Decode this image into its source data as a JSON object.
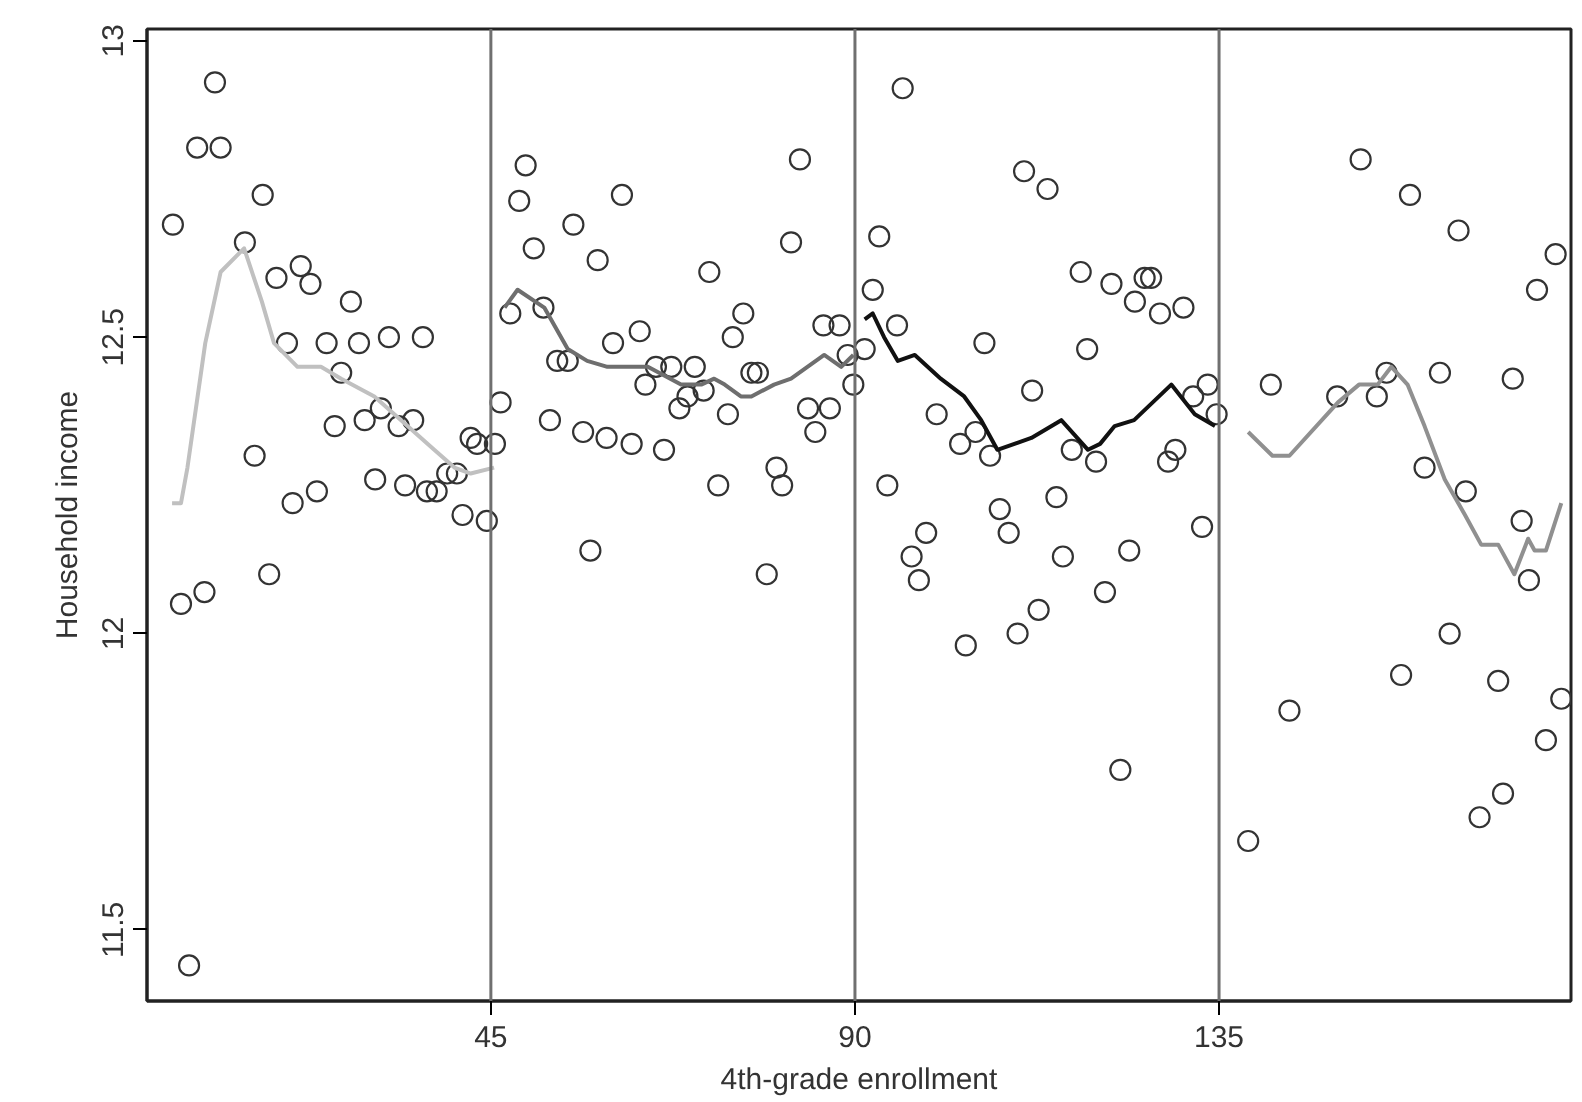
{
  "chart_data": {
    "type": "scatter",
    "xlabel": "4th-grade enrollment",
    "ylabel": "Household income",
    "xlim": [
      2.5,
      178.5
    ],
    "ylim": [
      11.38,
      13.02
    ],
    "xticks": [
      45,
      90,
      135
    ],
    "yticks": [
      11.5,
      12,
      12.5,
      13
    ],
    "grid": false,
    "ref_lines": [
      {
        "axis": "x",
        "value": 45,
        "color": "#707070"
      },
      {
        "axis": "x",
        "value": 90,
        "color": "#707070"
      },
      {
        "axis": "x",
        "value": 135,
        "color": "#707070"
      }
    ],
    "series": [
      {
        "marker": "circle",
        "color": "#333333",
        "x": [
          5.7,
          6.7,
          7.7,
          8.7,
          9.6,
          10.9,
          11.6,
          14.6,
          15.8,
          16.8,
          17.6,
          18.5,
          19.8,
          20.5,
          21.5,
          22.7,
          23.5,
          24.7,
          25.7,
          26.5,
          27.7,
          28.7,
          29.4,
          30.7,
          31.4,
          32.4,
          33.6,
          34.4,
          35.4,
          36.6,
          37.1,
          38.3,
          39.6,
          40.8,
          41.5,
          42.5,
          43.3,
          44.5,
          45.5,
          46.2,
          47.4,
          48.5,
          49.3,
          50.3,
          51.5,
          52.3,
          53.2,
          54.5,
          55.2,
          56.4,
          57.3,
          58.2,
          59.3,
          60.1,
          61.2,
          62.4,
          63.4,
          64.1,
          65.4,
          66.4,
          67.3,
          68.3,
          69.3,
          70.2,
          71.3,
          72.0,
          73.1,
          74.3,
          74.9,
          76.2,
          77.2,
          78.0,
          79.1,
          80.3,
          81.0,
          82.1,
          83.2,
          84.2,
          85.1,
          86.1,
          86.9,
          88.1,
          89.1,
          89.8,
          91.2,
          92.2,
          93.0,
          94.0,
          95.2,
          95.9,
          97.0,
          97.9,
          98.8,
          100.1,
          103.0,
          103.7,
          104.9,
          106.0,
          106.7,
          107.9,
          109.0,
          110.1,
          110.9,
          111.9,
          112.7,
          113.8,
          114.9,
          115.7,
          116.8,
          117.9,
          118.7,
          119.8,
          120.9,
          121.7,
          122.8,
          123.9,
          124.6,
          125.8,
          126.6,
          127.7,
          128.7,
          129.6,
          130.6,
          131.8,
          132.9,
          133.6,
          134.7,
          138.6,
          141.4,
          143.7,
          149.6,
          152.5,
          154.5,
          155.7,
          157.5,
          158.6,
          160.4,
          162.3,
          163.5,
          164.6,
          165.5,
          167.2,
          169.5,
          170.1,
          171.3,
          172.4,
          173.3,
          174.3,
          175.4,
          176.6,
          177.3
        ],
        "values": [
          12.69,
          12.05,
          11.44,
          12.82,
          12.07,
          12.93,
          12.82,
          12.66,
          12.3,
          12.74,
          12.1,
          12.6,
          12.49,
          12.22,
          12.62,
          12.59,
          12.24,
          12.49,
          12.35,
          12.44,
          12.56,
          12.49,
          12.36,
          12.26,
          12.38,
          12.5,
          12.35,
          12.25,
          12.36,
          12.5,
          12.24,
          12.24,
          12.27,
          12.27,
          12.2,
          12.33,
          12.32,
          12.19,
          12.32,
          12.39,
          12.54,
          12.73,
          12.79,
          12.65,
          12.55,
          12.36,
          12.46,
          12.46,
          12.69,
          12.34,
          12.14,
          12.63,
          12.33,
          12.49,
          12.74,
          12.32,
          12.51,
          12.42,
          12.45,
          12.31,
          12.45,
          12.38,
          12.4,
          12.45,
          12.41,
          12.61,
          12.25,
          12.37,
          12.5,
          12.54,
          12.44,
          12.44,
          12.1,
          12.28,
          12.25,
          12.66,
          12.8,
          12.38,
          12.34,
          12.52,
          12.38,
          12.52,
          12.47,
          12.42,
          12.48,
          12.58,
          12.67,
          12.25,
          12.52,
          12.92,
          12.13,
          12.09,
          12.17,
          12.37,
          12.32,
          11.98,
          12.34,
          12.49,
          12.3,
          12.21,
          12.17,
          12.0,
          12.78,
          12.41,
          12.04,
          12.75,
          12.23,
          12.13,
          12.31,
          12.61,
          12.48,
          12.29,
          12.07,
          12.59,
          11.77,
          12.14,
          12.56,
          12.6,
          12.6,
          12.54,
          12.29,
          12.31,
          12.55,
          12.4,
          12.18,
          12.42,
          12.37,
          11.65,
          12.42,
          11.87,
          12.4,
          12.8,
          12.4,
          12.44,
          11.93,
          12.74,
          12.28,
          12.44,
          12.0,
          12.68,
          12.24,
          11.69,
          11.92,
          11.73,
          12.43,
          12.19,
          12.09,
          12.58,
          11.82,
          12.64,
          11.89
        ]
      },
      {
        "type": "line",
        "color": "#c0c0c0",
        "x": [
          5.6,
          6.7,
          7.5,
          9.7,
          11.6,
          14.5,
          16.7,
          18.2,
          21.1,
          24.0,
          26.5,
          30.6,
          34.7,
          38.0,
          40.5,
          42.5,
          45.4
        ],
        "values": [
          12.22,
          12.22,
          12.28,
          12.49,
          12.61,
          12.65,
          12.56,
          12.49,
          12.45,
          12.45,
          12.43,
          12.4,
          12.35,
          12.31,
          12.28,
          12.27,
          12.28
        ]
      },
      {
        "type": "line",
        "color": "#6e6e6e",
        "x": [
          46.7,
          48.3,
          51.6,
          54.5,
          56.9,
          59.4,
          64.4,
          68.5,
          71.0,
          72.6,
          73.9,
          75.9,
          77.2,
          80.0,
          82.1,
          86.2,
          88.3,
          89.8
        ],
        "values": [
          12.55,
          12.58,
          12.55,
          12.48,
          12.46,
          12.45,
          12.45,
          12.42,
          12.42,
          12.43,
          12.42,
          12.4,
          12.4,
          12.42,
          12.43,
          12.47,
          12.45,
          12.47
        ]
      },
      {
        "type": "line",
        "color": "#111111",
        "x": [
          91.2,
          92.2,
          93.6,
          95.3,
          97.4,
          100.6,
          103.5,
          105.6,
          107.6,
          111.8,
          115.5,
          118.8,
          120.3,
          122.1,
          124.5,
          129.1,
          132.0,
          134.5
        ],
        "values": [
          12.53,
          12.54,
          12.5,
          12.46,
          12.47,
          12.43,
          12.4,
          12.36,
          12.31,
          12.33,
          12.36,
          12.31,
          12.32,
          12.35,
          12.36,
          12.42,
          12.37,
          12.35
        ]
      },
      {
        "type": "line",
        "color": "#909090",
        "x": [
          138.6,
          141.6,
          143.7,
          149.7,
          152.3,
          154.6,
          156.3,
          158.3,
          160.4,
          162.9,
          165.4,
          167.4,
          169.5,
          171.5,
          173.2,
          174.0,
          175.4,
          177.3
        ],
        "values": [
          12.34,
          12.3,
          12.3,
          12.39,
          12.42,
          12.42,
          12.45,
          12.42,
          12.35,
          12.26,
          12.2,
          12.15,
          12.15,
          12.1,
          12.16,
          12.14,
          12.14,
          12.22
        ]
      }
    ]
  }
}
